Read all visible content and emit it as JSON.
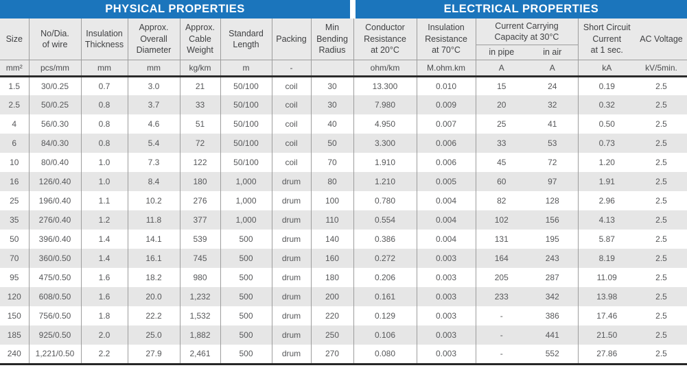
{
  "title_bars": {
    "physical": "PHYSICAL PROPERTIES",
    "electrical": "ELECTRICAL PROPERTIES"
  },
  "colors": {
    "header_blue": "#1b75bc",
    "header_gray": "#e9e9e9",
    "stripe_gray": "#e6e6e6",
    "border_gray": "#9c9c9c",
    "heavy_line": "#2b2b2b",
    "header_text": "#3e3f41",
    "data_text": "#565759",
    "title_text": "#ffffff"
  },
  "table": {
    "column_headers": {
      "size": "Size",
      "no_dia_of_wire": "No/Dia.\nof wire",
      "insulation_thickness": "Insulation\nThickness",
      "approx_overall_diameter": "Approx.\nOverall\nDiameter",
      "approx_cable_weight": "Approx.\nCable\nWeight",
      "standard_length": "Standard\nLength",
      "packing": "Packing",
      "min_bending_radius": "Min\nBending\nRadius",
      "conductor_resistance": "Conductor\nResistance\nat 20°C",
      "insulation_resistance": "Insulation\nResistance\nat 70°C",
      "current_carrying_capacity": "Current Carrying\nCapacity at 30°C",
      "in_pipe": "in pipe",
      "in_air": "in air",
      "short_circuit_current": "Short Circuit\nCurrent\nat 1 sec.",
      "ac_voltage": "AC Voltage"
    },
    "units": [
      "mm²",
      "pcs/mm",
      "mm",
      "mm",
      "kg/km",
      "m",
      "-",
      "",
      "ohm/km",
      "M.ohm.km",
      "A",
      "A",
      "kA",
      "kV/5min."
    ],
    "rows": [
      [
        "1.5",
        "30/0.25",
        "0.7",
        "3.0",
        "21",
        "50/100",
        "coil",
        "30",
        "13.300",
        "0.010",
        "15",
        "24",
        "0.19",
        "2.5"
      ],
      [
        "2.5",
        "50/0.25",
        "0.8",
        "3.7",
        "33",
        "50/100",
        "coil",
        "30",
        "7.980",
        "0.009",
        "20",
        "32",
        "0.32",
        "2.5"
      ],
      [
        "4",
        "56/0.30",
        "0.8",
        "4.6",
        "51",
        "50/100",
        "coil",
        "40",
        "4.950",
        "0.007",
        "25",
        "41",
        "0.50",
        "2.5"
      ],
      [
        "6",
        "84/0.30",
        "0.8",
        "5.4",
        "72",
        "50/100",
        "coil",
        "50",
        "3.300",
        "0.006",
        "33",
        "53",
        "0.73",
        "2.5"
      ],
      [
        "10",
        "80/0.40",
        "1.0",
        "7.3",
        "122",
        "50/100",
        "coil",
        "70",
        "1.910",
        "0.006",
        "45",
        "72",
        "1.20",
        "2.5"
      ],
      [
        "16",
        "126/0.40",
        "1.0",
        "8.4",
        "180",
        "1,000",
        "drum",
        "80",
        "1.210",
        "0.005",
        "60",
        "97",
        "1.91",
        "2.5"
      ],
      [
        "25",
        "196/0.40",
        "1.1",
        "10.2",
        "276",
        "1,000",
        "drum",
        "100",
        "0.780",
        "0.004",
        "82",
        "128",
        "2.96",
        "2.5"
      ],
      [
        "35",
        "276/0.40",
        "1.2",
        "11.8",
        "377",
        "1,000",
        "drum",
        "110",
        "0.554",
        "0.004",
        "102",
        "156",
        "4.13",
        "2.5"
      ],
      [
        "50",
        "396/0.40",
        "1.4",
        "14.1",
        "539",
        "500",
        "drum",
        "140",
        "0.386",
        "0.004",
        "131",
        "195",
        "5.87",
        "2.5"
      ],
      [
        "70",
        "360/0.50",
        "1.4",
        "16.1",
        "745",
        "500",
        "drum",
        "160",
        "0.272",
        "0.003",
        "164",
        "243",
        "8.19",
        "2.5"
      ],
      [
        "95",
        "475/0.50",
        "1.6",
        "18.2",
        "980",
        "500",
        "drum",
        "180",
        "0.206",
        "0.003",
        "205",
        "287",
        "11.09",
        "2.5"
      ],
      [
        "120",
        "608/0.50",
        "1.6",
        "20.0",
        "1,232",
        "500",
        "drum",
        "200",
        "0.161",
        "0.003",
        "233",
        "342",
        "13.98",
        "2.5"
      ],
      [
        "150",
        "756/0.50",
        "1.8",
        "22.2",
        "1,532",
        "500",
        "drum",
        "220",
        "0.129",
        "0.003",
        "-",
        "386",
        "17.46",
        "2.5"
      ],
      [
        "185",
        "925/0.50",
        "2.0",
        "25.0",
        "1,882",
        "500",
        "drum",
        "250",
        "0.106",
        "0.003",
        "-",
        "441",
        "21.50",
        "2.5"
      ],
      [
        "240",
        "1,221/0.50",
        "2.2",
        "27.9",
        "2,461",
        "500",
        "drum",
        "270",
        "0.080",
        "0.003",
        "-",
        "552",
        "27.86",
        "2.5"
      ]
    ]
  }
}
